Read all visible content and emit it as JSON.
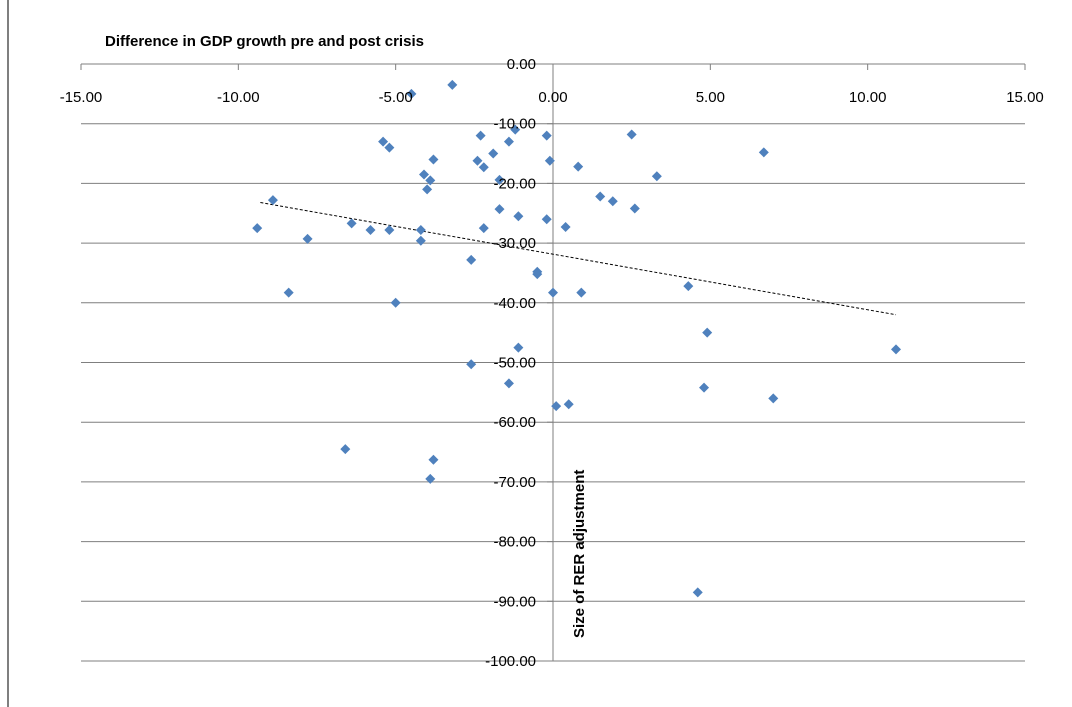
{
  "chart_data": {
    "type": "scatter",
    "title": "Difference in GDP growth pre and post crisis",
    "xlabel": "Size of RER adjustment",
    "ylabel": "",
    "xlim": [
      -15,
      15
    ],
    "ylim": [
      -100,
      0
    ],
    "x_ticks": [
      "-15.00",
      "-10.00",
      "-5.00",
      "0.00",
      "5.00",
      "10.00",
      "15.00"
    ],
    "y_ticks": [
      "0.00",
      "-10.00",
      "-20.00",
      "-30.00",
      "-40.00",
      "-50.00",
      "-60.00",
      "-70.00",
      "-80.00",
      "-90.00",
      "-100.00"
    ],
    "x_axis_position": "top",
    "grid": "horizontal major gridlines",
    "legend": "none",
    "marker_color": "#4F81BD",
    "trendline": {
      "type": "linear",
      "style": "dashed",
      "color": "#000000",
      "x": [
        -9.3,
        10.9
      ],
      "y": [
        -23.2,
        -42.0
      ]
    },
    "points": [
      {
        "x": -3.2,
        "y": -3.5
      },
      {
        "x": -4.5,
        "y": -5.0
      },
      {
        "x": -1.2,
        "y": -11.0
      },
      {
        "x": -2.3,
        "y": -12.0
      },
      {
        "x": -0.2,
        "y": -12.0
      },
      {
        "x": 2.5,
        "y": -11.8
      },
      {
        "x": -5.4,
        "y": -13.0
      },
      {
        "x": -5.2,
        "y": -14.0
      },
      {
        "x": -1.4,
        "y": -13.0
      },
      {
        "x": -1.9,
        "y": -15.0
      },
      {
        "x": 6.7,
        "y": -14.8
      },
      {
        "x": -3.8,
        "y": -16.0
      },
      {
        "x": -2.4,
        "y": -16.2
      },
      {
        "x": -0.1,
        "y": -16.2
      },
      {
        "x": -2.2,
        "y": -17.3
      },
      {
        "x": 0.8,
        "y": -17.2
      },
      {
        "x": -4.1,
        "y": -18.5
      },
      {
        "x": -3.9,
        "y": -19.5
      },
      {
        "x": -1.7,
        "y": -19.4
      },
      {
        "x": 3.3,
        "y": -18.8
      },
      {
        "x": -4.0,
        "y": -21.0
      },
      {
        "x": 1.5,
        "y": -22.2
      },
      {
        "x": 1.9,
        "y": -23.0
      },
      {
        "x": -8.9,
        "y": -22.8
      },
      {
        "x": -1.7,
        "y": -24.3
      },
      {
        "x": 2.6,
        "y": -24.2
      },
      {
        "x": -1.1,
        "y": -25.5
      },
      {
        "x": -0.2,
        "y": -26.0
      },
      {
        "x": -6.4,
        "y": -26.7
      },
      {
        "x": -9.4,
        "y": -27.5
      },
      {
        "x": -5.8,
        "y": -27.8
      },
      {
        "x": -5.2,
        "y": -27.8
      },
      {
        "x": -4.2,
        "y": -27.8
      },
      {
        "x": -2.2,
        "y": -27.5
      },
      {
        "x": 0.4,
        "y": -27.3
      },
      {
        "x": -7.8,
        "y": -29.3
      },
      {
        "x": -4.2,
        "y": -29.6
      },
      {
        "x": -2.6,
        "y": -32.8
      },
      {
        "x": -0.5,
        "y": -34.8
      },
      {
        "x": -0.5,
        "y": -35.2
      },
      {
        "x": 4.3,
        "y": -37.2
      },
      {
        "x": -8.4,
        "y": -38.3
      },
      {
        "x": 0.0,
        "y": -38.3
      },
      {
        "x": 0.9,
        "y": -38.3
      },
      {
        "x": -5.0,
        "y": -40.0
      },
      {
        "x": 4.9,
        "y": -45.0
      },
      {
        "x": -1.1,
        "y": -47.5
      },
      {
        "x": 10.9,
        "y": -47.8
      },
      {
        "x": -2.6,
        "y": -50.3
      },
      {
        "x": -1.4,
        "y": -53.5
      },
      {
        "x": 4.8,
        "y": -54.2
      },
      {
        "x": 7.0,
        "y": -56.0
      },
      {
        "x": 0.1,
        "y": -57.3
      },
      {
        "x": 0.5,
        "y": -57.0
      },
      {
        "x": -6.6,
        "y": -64.5
      },
      {
        "x": -3.8,
        "y": -66.3
      },
      {
        "x": -3.9,
        "y": -69.5
      },
      {
        "x": 4.6,
        "y": -88.5
      }
    ]
  }
}
